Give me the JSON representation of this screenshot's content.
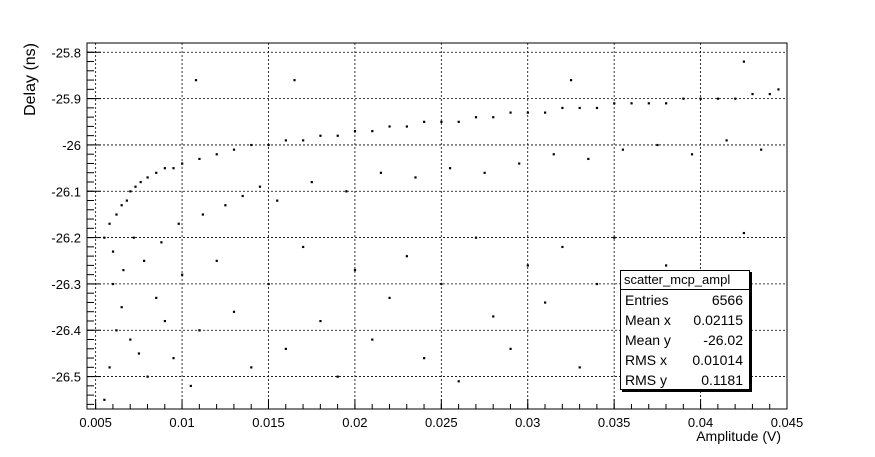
{
  "chart_data": {
    "type": "scatter",
    "title": "",
    "xlabel": "Amplitude (V)",
    "ylabel": "Delay (ns)",
    "xlim": [
      0.0045,
      0.045
    ],
    "ylim": [
      -26.57,
      -25.78
    ],
    "x_ticks": [
      0.005,
      0.01,
      0.015,
      0.02,
      0.025,
      0.03,
      0.035,
      0.04,
      0.045
    ],
    "x_tick_labels": [
      "0.005",
      "0.01",
      "0.015",
      "0.02",
      "0.025",
      "0.03",
      "0.035",
      "0.04",
      "0.045"
    ],
    "y_ticks": [
      -25.8,
      -25.9,
      -26.0,
      -26.1,
      -26.2,
      -26.3,
      -26.4,
      -26.5
    ],
    "y_tick_labels": [
      "-25.8",
      "-25.9",
      "-26",
      "-26.1",
      "-26.2",
      "-26.3",
      "-26.4",
      "-26.5"
    ],
    "grid": true,
    "series": [
      {
        "points": [
          [
            0.0055,
            -26.2
          ],
          [
            0.0058,
            -26.17
          ],
          [
            0.006,
            -26.23
          ],
          [
            0.0062,
            -26.15
          ],
          [
            0.0065,
            -26.13
          ],
          [
            0.0068,
            -26.12
          ],
          [
            0.007,
            -26.1
          ],
          [
            0.0073,
            -26.09
          ],
          [
            0.0076,
            -26.08
          ],
          [
            0.008,
            -26.07
          ],
          [
            0.0085,
            -26.06
          ],
          [
            0.009,
            -26.05
          ],
          [
            0.0095,
            -26.05
          ],
          [
            0.01,
            -26.04
          ],
          [
            0.011,
            -26.03
          ],
          [
            0.012,
            -26.02
          ],
          [
            0.013,
            -26.01
          ],
          [
            0.014,
            -26.0
          ],
          [
            0.015,
            -26.0
          ],
          [
            0.016,
            -25.99
          ],
          [
            0.017,
            -25.99
          ],
          [
            0.018,
            -25.98
          ],
          [
            0.019,
            -25.98
          ],
          [
            0.02,
            -25.97
          ],
          [
            0.021,
            -25.97
          ],
          [
            0.022,
            -25.96
          ],
          [
            0.023,
            -25.96
          ],
          [
            0.024,
            -25.95
          ],
          [
            0.025,
            -25.95
          ],
          [
            0.026,
            -25.95
          ],
          [
            0.027,
            -25.94
          ],
          [
            0.028,
            -25.94
          ],
          [
            0.029,
            -25.93
          ],
          [
            0.03,
            -25.93
          ],
          [
            0.031,
            -25.93
          ],
          [
            0.032,
            -25.92
          ],
          [
            0.033,
            -25.92
          ],
          [
            0.034,
            -25.92
          ],
          [
            0.035,
            -25.91
          ],
          [
            0.036,
            -25.91
          ],
          [
            0.037,
            -25.91
          ],
          [
            0.038,
            -25.91
          ],
          [
            0.039,
            -25.9
          ],
          [
            0.04,
            -25.9
          ],
          [
            0.041,
            -25.9
          ],
          [
            0.042,
            -25.9
          ],
          [
            0.043,
            -25.89
          ],
          [
            0.044,
            -25.89
          ],
          [
            0.0445,
            -25.88
          ],
          [
            0.0108,
            -25.86
          ],
          [
            0.0165,
            -25.86
          ],
          [
            0.0325,
            -25.86
          ],
          [
            0.0425,
            -25.82
          ],
          [
            0.006,
            -26.3
          ],
          [
            0.0065,
            -26.35
          ],
          [
            0.007,
            -26.42
          ],
          [
            0.0075,
            -26.45
          ],
          [
            0.008,
            -26.5
          ],
          [
            0.0085,
            -26.33
          ],
          [
            0.009,
            -26.38
          ],
          [
            0.0095,
            -26.46
          ],
          [
            0.01,
            -26.28
          ],
          [
            0.0105,
            -26.52
          ],
          [
            0.011,
            -26.4
          ],
          [
            0.012,
            -26.25
          ],
          [
            0.013,
            -26.36
          ],
          [
            0.014,
            -26.48
          ],
          [
            0.015,
            -26.3
          ],
          [
            0.016,
            -26.44
          ],
          [
            0.017,
            -26.22
          ],
          [
            0.018,
            -26.38
          ],
          [
            0.019,
            -26.5
          ],
          [
            0.02,
            -26.27
          ],
          [
            0.021,
            -26.42
          ],
          [
            0.022,
            -26.33
          ],
          [
            0.023,
            -26.24
          ],
          [
            0.024,
            -26.46
          ],
          [
            0.025,
            -26.3
          ],
          [
            0.026,
            -26.51
          ],
          [
            0.027,
            -26.2
          ],
          [
            0.028,
            -26.37
          ],
          [
            0.029,
            -26.44
          ],
          [
            0.03,
            -26.26
          ],
          [
            0.031,
            -26.34
          ],
          [
            0.032,
            -26.22
          ],
          [
            0.033,
            -26.48
          ],
          [
            0.034,
            -26.3
          ],
          [
            0.035,
            -26.2
          ],
          [
            0.036,
            -26.35
          ],
          [
            0.038,
            -26.26
          ],
          [
            0.04,
            -26.45
          ],
          [
            0.0425,
            -26.19
          ],
          [
            0.0055,
            -26.55
          ],
          [
            0.0058,
            -26.48
          ],
          [
            0.0062,
            -26.4
          ],
          [
            0.0066,
            -26.27
          ],
          [
            0.0072,
            -26.2
          ],
          [
            0.0078,
            -26.25
          ],
          [
            0.0088,
            -26.21
          ],
          [
            0.0098,
            -26.17
          ],
          [
            0.0112,
            -26.15
          ],
          [
            0.0125,
            -26.13
          ],
          [
            0.0135,
            -26.11
          ],
          [
            0.0145,
            -26.09
          ],
          [
            0.0155,
            -26.12
          ],
          [
            0.0175,
            -26.08
          ],
          [
            0.0195,
            -26.1
          ],
          [
            0.0215,
            -26.06
          ],
          [
            0.0235,
            -26.07
          ],
          [
            0.0255,
            -26.05
          ],
          [
            0.0275,
            -26.06
          ],
          [
            0.0295,
            -26.04
          ],
          [
            0.0315,
            -26.02
          ],
          [
            0.0335,
            -26.03
          ],
          [
            0.0355,
            -26.01
          ],
          [
            0.0375,
            -26.0
          ],
          [
            0.0395,
            -26.02
          ],
          [
            0.0415,
            -25.99
          ],
          [
            0.0435,
            -26.01
          ]
        ]
      }
    ]
  },
  "stats_box": {
    "title": "scatter_mcp_ampl",
    "rows": [
      {
        "label": "Entries",
        "value": "6566"
      },
      {
        "label": "Mean x",
        "value": "0.02115"
      },
      {
        "label": "Mean y",
        "value": "-26.02"
      },
      {
        "label": "RMS x",
        "value": "0.01014"
      },
      {
        "label": "RMS y",
        "value": "0.1181"
      }
    ]
  }
}
